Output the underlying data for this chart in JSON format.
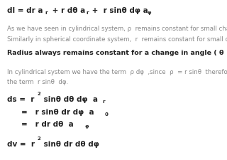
{
  "bg_color": "#ffffff",
  "gray": "#888888",
  "dark": "#222222",
  "lines": {
    "line1_main": "dl = dr a",
    "line1_sub1": "r",
    "line1_mid": " + r dθ a",
    "line1_sub2": "r",
    "line1_end": " +  r sinθ dφ a",
    "line1_sub3": "φ",
    "line2": "As we have seen in cylindrical system, ρ  remains constant for small change in  φ  .",
    "line3": "Similarly in spherical coordinate system,  r  remains constant for small change in  θ",
    "line4": "Radius always remains constant for a change in angle ( θ  and φ ).",
    "line5": "In cylindrical system we have the term  ρ dφ  ,since  ρ  = r sinθ  therefore",
    "line6": "the term  r sinθ  dφ.",
    "ds1_pre": "ds =  r",
    "ds1_sup": "2",
    "ds1_post": " sinθ dθ dφ  a",
    "ds1_sub": "r",
    "ds2_pre": "=   r sinθ dr dφ  a",
    "ds2_sub": "0",
    "ds3_pre": "=   r dr dθ  a",
    "ds3_sub": "φ",
    "dv_pre": "dv =  r",
    "dv_sup": "2",
    "dv_post": " sinθ dr dθ dφ"
  },
  "y_positions": {
    "line1": 0.955,
    "line2": 0.84,
    "line3": 0.775,
    "line4": 0.69,
    "line5": 0.57,
    "line6": 0.505,
    "ds1": 0.4,
    "ds2": 0.32,
    "ds3": 0.245,
    "dv": 0.12
  },
  "font_sizes": {
    "heading": 7.5,
    "body": 6.2,
    "bold_body": 6.8,
    "sub": 4.5
  }
}
